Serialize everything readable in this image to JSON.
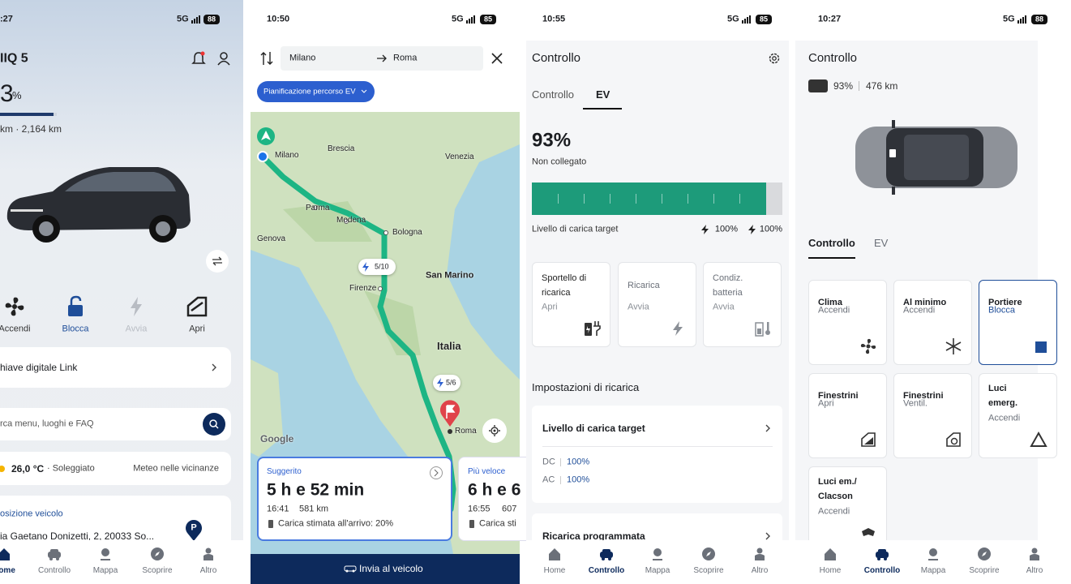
{
  "panels": [
    {
      "status": {
        "time": ":27",
        "network": "5G",
        "battery": "88"
      },
      "title": "IIQ 5",
      "charge": "3",
      "charge_unit": "%",
      "range": "km · 2,164 km",
      "actions": [
        "Accendi",
        "Blocca",
        "Avvia",
        "Apri"
      ],
      "digital_key": "hiave digitale Link",
      "search": "rca menu, luoghi e FAQ",
      "weather": {
        "temp": "26,0 °C",
        "condition": "· Soleggiato",
        "link": "Meteo nelle vicinanze"
      },
      "location": {
        "heading": "osizione veicolo",
        "address": "ia Gaetano Donizetti, 2, 20033 So...",
        "badge": "P"
      },
      "nav": [
        "Home",
        "Controllo",
        "Mappa",
        "Scoprire",
        "Altro"
      ]
    },
    {
      "status": {
        "time": "10:50",
        "network": "5G",
        "battery": "85"
      },
      "from": "Milano",
      "to": "Roma",
      "chip": "Pianificazione percorso EV",
      "map_labels": [
        "Milano",
        "Brescia",
        "Venezia",
        "Parma",
        "Modena",
        "Bologna",
        "Genova",
        "San Marino",
        "Firenze",
        "Italia",
        "Roma"
      ],
      "stops": [
        "5/10",
        "5/6"
      ],
      "attribution": "Google",
      "routes": [
        {
          "tag": "Suggerito",
          "duration": "5 h e 52 min",
          "arrival": "16:41",
          "distance": "581 km",
          "charge": "Carica stimata all'arrivo: 20%"
        },
        {
          "tag": "Più veloce",
          "duration": "6 h e 6",
          "arrival": "16:55",
          "distance": "607",
          "charge": "Carica sti"
        }
      ],
      "button": "Invia al veicolo"
    },
    {
      "status": {
        "time": "10:55",
        "network": "5G",
        "battery": "85"
      },
      "title": "Controllo",
      "tabs": [
        "Controllo",
        "EV"
      ],
      "battery_level": "93%",
      "plug_state": "Non collegato",
      "target_label": "Livello di carica target",
      "target_dc": "100%",
      "target_ac": "100%",
      "cards": [
        {
          "name": "Sportello di ricarica",
          "action": "Apri"
        },
        {
          "name": "Ricarica",
          "action": "Avvia"
        },
        {
          "name": "Condiz. batteria",
          "action": "Avvia"
        }
      ],
      "settings_heading": "Impostazioni di ricarica",
      "settings": {
        "title": "Livello di carica target",
        "dc_label": "DC",
        "dc": "100%",
        "ac_label": "AC",
        "ac": "100%"
      },
      "scheduled": "Ricarica programmata",
      "nav": [
        "Home",
        "Controllo",
        "Mappa",
        "Scoprire",
        "Altro"
      ]
    },
    {
      "status": {
        "time": "10:27",
        "network": "5G",
        "battery": "88"
      },
      "title": "Controllo",
      "battery_level": "93%",
      "range": "476 km",
      "tabs": [
        "Controllo",
        "EV"
      ],
      "cards": [
        {
          "name": "Clima",
          "action": "Accendi"
        },
        {
          "name": "Al minimo",
          "action": "Accendi"
        },
        {
          "name": "Portiere",
          "action": "Blocca"
        },
        {
          "name": "Finestrini",
          "action": "Apri"
        },
        {
          "name": "Finestrini",
          "action": "Ventil."
        },
        {
          "name": "Luci emerg.",
          "action": "Accendi"
        },
        {
          "name": "Luci em./ Clacson",
          "action": "Accendi"
        }
      ],
      "nav": [
        "Home",
        "Controllo",
        "Mappa",
        "Scoprire",
        "Altro"
      ]
    }
  ]
}
